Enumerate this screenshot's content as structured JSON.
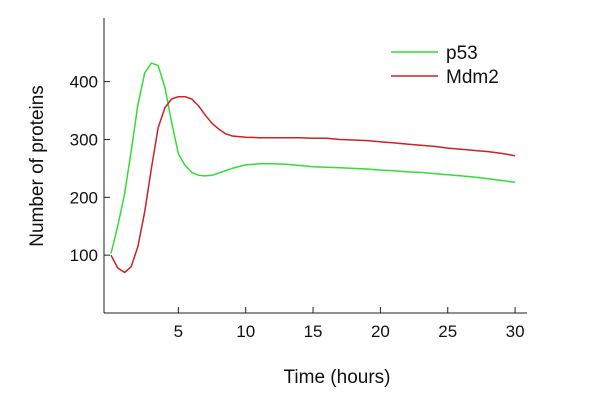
{
  "chart_data": {
    "type": "line",
    "title": "",
    "xlabel": "Time (hours)",
    "ylabel": "Number of proteins",
    "xlim": [
      0,
      30.8
    ],
    "ylim": [
      0,
      510
    ],
    "x_ticks": [
      5,
      10,
      15,
      20,
      25,
      30
    ],
    "y_ticks": [
      100,
      200,
      300,
      400
    ],
    "grid": false,
    "legend_position": "top-right",
    "series": [
      {
        "name": "p53",
        "color": "#33dd33",
        "points": [
          [
            0,
            103
          ],
          [
            0.5,
            150
          ],
          [
            1,
            205
          ],
          [
            1.5,
            280
          ],
          [
            2,
            360
          ],
          [
            2.5,
            415
          ],
          [
            3,
            432
          ],
          [
            3.5,
            428
          ],
          [
            4,
            390
          ],
          [
            4.5,
            330
          ],
          [
            5,
            275
          ],
          [
            5.5,
            255
          ],
          [
            6,
            243
          ],
          [
            6.5,
            238
          ],
          [
            7,
            237
          ],
          [
            7.5,
            238
          ],
          [
            8,
            242
          ],
          [
            9,
            250
          ],
          [
            10,
            256
          ],
          [
            11,
            258
          ],
          [
            12,
            258
          ],
          [
            13,
            257
          ],
          [
            14,
            255
          ],
          [
            15,
            253
          ],
          [
            16,
            252
          ],
          [
            17,
            251
          ],
          [
            18,
            250
          ],
          [
            19,
            249
          ],
          [
            20,
            247
          ],
          [
            21,
            246
          ],
          [
            22,
            244
          ],
          [
            23,
            243
          ],
          [
            24,
            241
          ],
          [
            25,
            239
          ],
          [
            26,
            237
          ],
          [
            27,
            235
          ],
          [
            28,
            232
          ],
          [
            29,
            229
          ],
          [
            30,
            226
          ]
        ]
      },
      {
        "name": "Mdm2",
        "color": "#cc2222",
        "points": [
          [
            0,
            100
          ],
          [
            0.5,
            78
          ],
          [
            1,
            70
          ],
          [
            1.5,
            80
          ],
          [
            2,
            115
          ],
          [
            2.5,
            175
          ],
          [
            3,
            250
          ],
          [
            3.5,
            320
          ],
          [
            4,
            355
          ],
          [
            4.5,
            370
          ],
          [
            5,
            374
          ],
          [
            5.5,
            374
          ],
          [
            6,
            370
          ],
          [
            6.5,
            358
          ],
          [
            7,
            342
          ],
          [
            7.5,
            328
          ],
          [
            8,
            318
          ],
          [
            8.5,
            310
          ],
          [
            9,
            306
          ],
          [
            10,
            304
          ],
          [
            11,
            303
          ],
          [
            12,
            303
          ],
          [
            13,
            303
          ],
          [
            14,
            303
          ],
          [
            15,
            302
          ],
          [
            16,
            302
          ],
          [
            17,
            300
          ],
          [
            18,
            299
          ],
          [
            19,
            298
          ],
          [
            20,
            296
          ],
          [
            21,
            294
          ],
          [
            22,
            292
          ],
          [
            23,
            290
          ],
          [
            24,
            288
          ],
          [
            25,
            285
          ],
          [
            26,
            283
          ],
          [
            27,
            281
          ],
          [
            28,
            279
          ],
          [
            29,
            276
          ],
          [
            30,
            272
          ]
        ]
      }
    ]
  }
}
